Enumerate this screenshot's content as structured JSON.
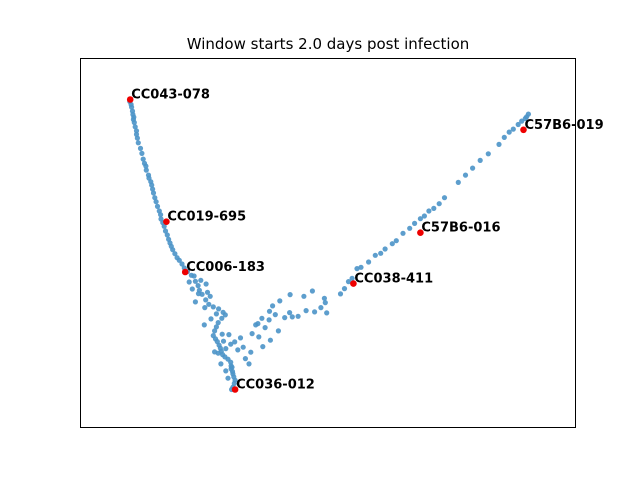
{
  "chart_data": {
    "type": "scatter",
    "title": "Window starts 2.0 days post infection",
    "xlabel": "",
    "ylabel": "",
    "xlim": [
      0,
      100
    ],
    "ylim": [
      0,
      100
    ],
    "grid": false,
    "legend": "none",
    "colors": {
      "points": "#4b93c8",
      "highlight": "#ee0000",
      "frame": "#000000"
    },
    "points": [
      [
        5.6,
        92.5
      ],
      [
        5.9,
        91.6
      ],
      [
        6.0,
        90.8
      ],
      [
        6.2,
        89.6
      ],
      [
        6.3,
        88.6
      ],
      [
        6.5,
        87.8
      ],
      [
        6.4,
        87.1
      ],
      [
        6.6,
        86.2
      ],
      [
        6.8,
        84.9
      ],
      [
        7.1,
        83.7
      ],
      [
        7.1,
        82.6
      ],
      [
        7.3,
        81.5
      ],
      [
        7.5,
        80.1
      ],
      [
        8.0,
        78.4
      ],
      [
        8.3,
        76.9
      ],
      [
        8.6,
        75.2
      ],
      [
        8.9,
        73.9
      ],
      [
        9.2,
        73.1
      ],
      [
        9.3,
        71.9
      ],
      [
        9.8,
        70.4
      ],
      [
        9.9,
        69.5
      ],
      [
        10.3,
        68.4
      ],
      [
        10.5,
        67.4
      ],
      [
        10.7,
        66.2
      ],
      [
        10.9,
        65.0
      ],
      [
        11.2,
        63.6
      ],
      [
        11.5,
        62.4
      ],
      [
        11.8,
        61.0
      ],
      [
        12.2,
        59.6
      ],
      [
        12.5,
        58.5
      ],
      [
        12.6,
        57.2
      ],
      [
        13.0,
        56.1
      ],
      [
        13.3,
        55.0
      ],
      [
        13.6,
        53.6
      ],
      [
        14.0,
        52.4
      ],
      [
        14.3,
        51.1
      ],
      [
        14.6,
        50.0
      ],
      [
        14.9,
        49.0
      ],
      [
        15.2,
        48.0
      ],
      [
        15.7,
        46.8
      ],
      [
        16.2,
        45.6
      ],
      [
        16.7,
        44.8
      ],
      [
        17.3,
        43.7
      ],
      [
        17.8,
        42.5
      ],
      [
        18.5,
        41.4
      ],
      [
        19.4,
        40.3
      ],
      [
        20.0,
        40.1
      ],
      [
        20.3,
        38.5
      ],
      [
        20.9,
        37.2
      ],
      [
        21.2,
        35.8
      ],
      [
        21.8,
        34.6
      ],
      [
        22.6,
        32.9
      ],
      [
        23.3,
        31.6
      ],
      [
        24.3,
        30.8
      ],
      [
        25.5,
        30.2
      ],
      [
        26.5,
        29.2
      ],
      [
        27.0,
        28.4
      ],
      [
        26.2,
        27.4
      ],
      [
        25.4,
        26.1
      ],
      [
        25.0,
        24.8
      ],
      [
        24.6,
        23.6
      ],
      [
        24.3,
        22.2
      ],
      [
        24.8,
        21.2
      ],
      [
        25.2,
        20.4
      ],
      [
        25.6,
        19.3
      ],
      [
        25.9,
        18.4
      ],
      [
        26.1,
        17.5
      ],
      [
        26.4,
        16.5
      ],
      [
        26.9,
        15.8
      ],
      [
        27.6,
        15.1
      ],
      [
        28.2,
        14.2
      ],
      [
        28.3,
        13.1
      ],
      [
        28.3,
        12.2
      ],
      [
        28.6,
        11.4
      ],
      [
        28.7,
        10.7
      ],
      [
        28.9,
        9.8
      ],
      [
        29.2,
        8.8
      ],
      [
        29.0,
        7.8
      ],
      [
        28.7,
        6.7
      ],
      [
        28.4,
        6.0
      ],
      [
        27.6,
        9.4
      ],
      [
        28.5,
        12.7
      ],
      [
        27.1,
        11.6
      ],
      [
        26.0,
        13.7
      ],
      [
        24.6,
        17.3
      ],
      [
        25.4,
        16.9
      ],
      [
        26.6,
        20.5
      ],
      [
        27.1,
        18.3
      ],
      [
        26.3,
        22.6
      ],
      [
        27.8,
        22.5
      ],
      [
        28.2,
        19.6
      ],
      [
        29.1,
        20.3
      ],
      [
        29.8,
        17.9
      ],
      [
        30.4,
        21.5
      ],
      [
        31.0,
        18.7
      ],
      [
        31.5,
        15.3
      ],
      [
        32.3,
        13.7
      ],
      [
        32.7,
        17.2
      ],
      [
        33.0,
        22.8
      ],
      [
        33.8,
        25.4
      ],
      [
        34.5,
        21.8
      ],
      [
        35.4,
        18.9
      ],
      [
        35.9,
        24.6
      ],
      [
        36.8,
        26.9
      ],
      [
        37.1,
        20.8
      ],
      [
        38.2,
        28.5
      ],
      [
        38.9,
        23.6
      ],
      [
        40.3,
        27.6
      ],
      [
        41.4,
        29.1
      ],
      [
        42.0,
        27.8
      ],
      [
        43.3,
        28.0
      ],
      [
        45.1,
        29.7
      ],
      [
        47.0,
        29.3
      ],
      [
        48.4,
        30.6
      ],
      [
        49.2,
        33.4
      ],
      [
        49.4,
        32.1
      ],
      [
        49.7,
        29.0
      ],
      [
        52.8,
        34.7
      ],
      [
        53.7,
        36.3
      ],
      [
        54.6,
        38.4
      ],
      [
        55.4,
        39.4
      ],
      [
        56.5,
        42.3
      ],
      [
        57.4,
        42.7
      ],
      [
        59.1,
        44.3
      ],
      [
        60.6,
        46.3
      ],
      [
        61.8,
        46.9
      ],
      [
        62.8,
        48.2
      ],
      [
        64.4,
        49.8
      ],
      [
        65.3,
        50.7
      ],
      [
        66.8,
        52.9
      ],
      [
        68.3,
        54.4
      ],
      [
        69.4,
        55.9
      ],
      [
        70.7,
        57.3
      ],
      [
        71.6,
        58.1
      ],
      [
        72.6,
        59.6
      ],
      [
        73.7,
        60.4
      ],
      [
        74.9,
        61.8
      ],
      [
        76.1,
        63.6
      ],
      [
        79.2,
        68.2
      ],
      [
        80.8,
        70.4
      ],
      [
        82.4,
        72.5
      ],
      [
        84.1,
        74.8
      ],
      [
        85.9,
        76.8
      ],
      [
        88.3,
        79.6
      ],
      [
        89.5,
        81.7
      ],
      [
        90.6,
        83.3
      ],
      [
        91.5,
        84.2
      ],
      [
        92.6,
        85.6
      ],
      [
        93.4,
        86.6
      ],
      [
        94.5,
        87.9
      ],
      [
        94.9,
        88.7
      ],
      [
        94.2,
        87.4
      ],
      [
        34.3,
        25.8
      ],
      [
        35.2,
        27.4
      ],
      [
        36.9,
        29.5
      ],
      [
        37.6,
        31.1
      ],
      [
        39.2,
        32.6
      ],
      [
        41.5,
        34.5
      ],
      [
        44.6,
        34.0
      ],
      [
        46.5,
        35.6
      ],
      [
        21.5,
        38.8
      ],
      [
        22.7,
        37.7
      ],
      [
        23.0,
        35.2
      ],
      [
        23.6,
        34.0
      ],
      [
        21.0,
        34.8
      ],
      [
        22.4,
        30.6
      ],
      [
        25.0,
        28.7
      ],
      [
        23.8,
        27.2
      ],
      [
        22.3,
        25.4
      ],
      [
        20.3,
        32.3
      ],
      [
        19.6,
        36.2
      ],
      [
        18.9,
        38.3
      ]
    ],
    "highlights": [
      {
        "label": "CC043-078",
        "x": 5.7,
        "y": 93.1
      },
      {
        "label": "CC019-695",
        "x": 13.8,
        "y": 56.4
      },
      {
        "label": "CC006-183",
        "x": 18.0,
        "y": 41.3
      },
      {
        "label": "CC036-012",
        "x": 29.2,
        "y": 6.0
      },
      {
        "label": "CC038-411",
        "x": 55.7,
        "y": 37.8
      },
      {
        "label": "C57B6-016",
        "x": 70.7,
        "y": 53.1
      },
      {
        "label": "C57B6-019",
        "x": 93.8,
        "y": 84.0
      }
    ]
  }
}
